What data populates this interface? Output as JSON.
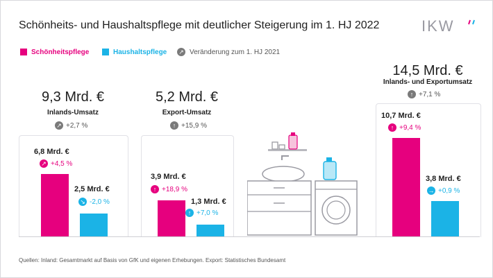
{
  "header": {
    "title": "Schönheits- und Haushaltspflege mit deutlicher Steigerung im 1. HJ 2022",
    "logo_text": "IKW"
  },
  "legend": {
    "beauty_label": "Schönheitspflege",
    "household_label": "Haushaltspflege",
    "change_label": "Veränderung zum 1. HJ 2021"
  },
  "colors": {
    "beauty": "#e6007e",
    "household": "#1bb3e6",
    "change_neutral": "#7a7a7a"
  },
  "panels": [
    {
      "total": "9,3 Mrd. €",
      "label": "Inlands-Umsatz",
      "change": "+2,7 %",
      "beauty": {
        "value": "6,8 Mrd. €",
        "change": "+4,5 %"
      },
      "household": {
        "value": "2,5 Mrd. €",
        "change": "-2,0 %"
      }
    },
    {
      "total": "5,2 Mrd. €",
      "label": "Export-Umsatz",
      "change": "+15,9 %",
      "beauty": {
        "value": "3,9 Mrd. €",
        "change": "+18,9 %"
      },
      "household": {
        "value": "1,3 Mrd. €",
        "change": "+7,0 %"
      }
    },
    {
      "total": "14,5 Mrd. €",
      "label": "Inlands- und Exportumsatz",
      "change": "+7,1 %",
      "beauty": {
        "value": "10,7 Mrd. €",
        "change": "+9,4 %"
      },
      "household": {
        "value": "3,8 Mrd. €",
        "change": "+0,9 %"
      }
    }
  ],
  "source": "Quellen: Inland: Gesamtmarkt auf Basis von GfK und eigenen Erhebungen. Export: Statistisches Bundesamt",
  "chart_data": {
    "type": "bar",
    "title": "Schönheits- und Haushaltspflege mit deutlicher Steigerung im 1. HJ 2022",
    "categories": [
      "Inlands-Umsatz",
      "Export-Umsatz",
      "Inlands- und Exportumsatz"
    ],
    "series": [
      {
        "name": "Schönheitspflege",
        "values": [
          6.8,
          3.9,
          10.7
        ],
        "change_pct": [
          4.5,
          18.9,
          9.4
        ]
      },
      {
        "name": "Haushaltspflege",
        "values": [
          2.5,
          1.3,
          3.8
        ],
        "change_pct": [
          -2.0,
          7.0,
          0.9
        ]
      }
    ],
    "totals": [
      9.3,
      5.2,
      14.5
    ],
    "total_change_pct": [
      2.7,
      15.9,
      7.1
    ],
    "unit": "Mrd. €"
  }
}
